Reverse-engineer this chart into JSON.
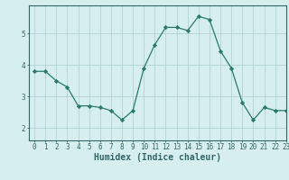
{
  "x": [
    0,
    1,
    2,
    3,
    4,
    5,
    6,
    7,
    8,
    9,
    10,
    11,
    12,
    13,
    14,
    15,
    16,
    17,
    18,
    19,
    20,
    21,
    22,
    23
  ],
  "y": [
    3.8,
    3.8,
    3.5,
    3.3,
    2.7,
    2.7,
    2.65,
    2.55,
    2.25,
    2.55,
    3.9,
    4.65,
    5.2,
    5.2,
    5.1,
    5.55,
    5.45,
    4.45,
    3.9,
    2.8,
    2.25,
    2.65,
    2.55,
    2.55
  ],
  "line_color": "#2a7a6a",
  "marker": "D",
  "marker_size": 2.2,
  "bg_color": "#d6eeee",
  "grid_color": "#aacece",
  "xlabel": "Humidex (Indice chaleur)",
  "xlim": [
    -0.5,
    23
  ],
  "ylim": [
    1.6,
    5.9
  ],
  "yticks": [
    2,
    3,
    4,
    5
  ],
  "xticks": [
    0,
    1,
    2,
    3,
    4,
    5,
    6,
    7,
    8,
    9,
    10,
    11,
    12,
    13,
    14,
    15,
    16,
    17,
    18,
    19,
    20,
    21,
    22,
    23
  ],
  "tick_fontsize": 5.5,
  "xlabel_fontsize": 7.0,
  "spine_color": "#336666"
}
